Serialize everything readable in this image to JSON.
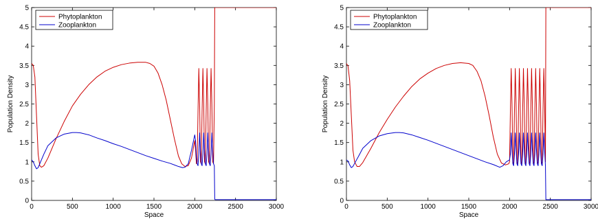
{
  "chart_data": [
    {
      "type": "line",
      "xlabel": "Space",
      "ylabel": "Population Density",
      "xlim": [
        0,
        3000
      ],
      "ylim": [
        0,
        5
      ],
      "xticks": [
        0,
        500,
        1000,
        1500,
        2000,
        2500,
        3000
      ],
      "yticks": [
        0,
        0.5,
        1,
        1.5,
        2,
        2.5,
        3,
        3.5,
        4,
        4.5,
        5
      ],
      "legend_position": "top-left",
      "series": [
        {
          "name": "Phytoplankton",
          "color": "#cc0000",
          "x": [
            0,
            20,
            40,
            60,
            80,
            100,
            120,
            150,
            200,
            300,
            400,
            500,
            600,
            700,
            800,
            900,
            1000,
            1100,
            1200,
            1300,
            1400,
            1450,
            1500,
            1550,
            1600,
            1650,
            1700,
            1750,
            1800,
            1840,
            1880,
            1920,
            1960,
            2000,
            2010,
            2020,
            2030,
            2040,
            2050,
            2060,
            2070,
            2080,
            2090,
            2100,
            2110,
            2120,
            2130,
            2140,
            2150,
            2160,
            2170,
            2180,
            2190,
            2200,
            2210,
            2220,
            2230,
            2240,
            2245,
            2250,
            3000
          ],
          "values": [
            3.55,
            3.5,
            3.2,
            2.2,
            1.2,
            0.9,
            0.86,
            0.9,
            1.1,
            1.6,
            2.05,
            2.45,
            2.75,
            3.0,
            3.2,
            3.35,
            3.45,
            3.52,
            3.56,
            3.58,
            3.58,
            3.55,
            3.48,
            3.3,
            3.0,
            2.6,
            2.1,
            1.6,
            1.15,
            0.95,
            0.88,
            0.9,
            1.1,
            1.55,
            1.3,
            0.95,
            1.0,
            2.3,
            3.42,
            2.5,
            1.0,
            0.95,
            2.3,
            3.42,
            2.5,
            1.0,
            0.95,
            2.3,
            3.42,
            2.5,
            1.0,
            0.95,
            2.3,
            3.42,
            2.5,
            1.0,
            0.95,
            2.5,
            5.0,
            5.0,
            5.0
          ]
        },
        {
          "name": "Zooplankton",
          "color": "#0000cc",
          "x": [
            0,
            20,
            40,
            60,
            80,
            100,
            150,
            200,
            300,
            400,
            500,
            550,
            600,
            700,
            800,
            900,
            1000,
            1100,
            1200,
            1300,
            1400,
            1500,
            1600,
            1700,
            1800,
            1850,
            1880,
            1920,
            1960,
            2000,
            2010,
            2020,
            2030,
            2040,
            2050,
            2060,
            2070,
            2080,
            2090,
            2100,
            2110,
            2120,
            2130,
            2140,
            2150,
            2160,
            2170,
            2180,
            2190,
            2200,
            2210,
            2220,
            2230,
            2240,
            2245,
            2250,
            3000
          ],
          "values": [
            1.05,
            1.0,
            0.9,
            0.82,
            0.85,
            0.95,
            1.2,
            1.42,
            1.62,
            1.72,
            1.76,
            1.76,
            1.75,
            1.7,
            1.62,
            1.55,
            1.47,
            1.4,
            1.32,
            1.24,
            1.16,
            1.09,
            1.02,
            0.96,
            0.88,
            0.85,
            0.86,
            0.95,
            1.3,
            1.7,
            1.55,
            1.1,
            0.95,
            0.9,
            1.2,
            1.75,
            1.3,
            0.95,
            0.9,
            1.2,
            1.75,
            1.3,
            0.95,
            0.9,
            1.2,
            1.75,
            1.3,
            0.95,
            0.9,
            1.2,
            1.75,
            1.3,
            0.95,
            0.9,
            0.03,
            0.02,
            0.02
          ]
        }
      ]
    },
    {
      "type": "line",
      "xlabel": "Space",
      "ylabel": "Population Density",
      "xlim": [
        0,
        3000
      ],
      "ylim": [
        0,
        5
      ],
      "xticks": [
        0,
        500,
        1000,
        1500,
        2000,
        2500,
        3000
      ],
      "yticks": [
        0,
        0.5,
        1,
        1.5,
        2,
        2.5,
        3,
        3.5,
        4,
        4.5,
        5
      ],
      "legend_position": "top-left",
      "series": [
        {
          "name": "Phytoplankton",
          "color": "#cc0000",
          "x": [
            0,
            20,
            40,
            60,
            80,
            100,
            130,
            160,
            200,
            300,
            400,
            500,
            600,
            700,
            800,
            900,
            1000,
            1100,
            1200,
            1300,
            1400,
            1500,
            1550,
            1600,
            1650,
            1700,
            1750,
            1800,
            1850,
            1900,
            1950,
            1990,
            2000,
            2010,
            2020,
            2030,
            2040,
            2050,
            2060,
            2070,
            2080,
            2090,
            2100,
            2110,
            2120,
            2130,
            2140,
            2150,
            2160,
            2170,
            2180,
            2190,
            2200,
            2210,
            2220,
            2230,
            2240,
            2250,
            2260,
            2270,
            2280,
            2290,
            2300,
            2310,
            2320,
            2330,
            2340,
            2350,
            2360,
            2370,
            2380,
            2390,
            2400,
            2410,
            2420,
            2430,
            2440,
            2445,
            3000
          ],
          "values": [
            3.55,
            3.48,
            3.1,
            2.2,
            1.3,
            1.0,
            0.88,
            0.88,
            0.98,
            1.35,
            1.75,
            2.1,
            2.42,
            2.7,
            2.95,
            3.15,
            3.3,
            3.42,
            3.5,
            3.55,
            3.57,
            3.55,
            3.5,
            3.35,
            3.1,
            2.7,
            2.2,
            1.65,
            1.2,
            0.97,
            0.92,
            0.95,
            1.0,
            2.3,
            3.42,
            2.5,
            1.0,
            0.95,
            2.3,
            3.42,
            2.5,
            1.0,
            0.95,
            2.3,
            3.42,
            2.5,
            1.0,
            0.95,
            2.3,
            3.42,
            2.5,
            1.0,
            0.95,
            2.3,
            3.42,
            2.5,
            1.0,
            0.95,
            2.3,
            3.42,
            2.5,
            1.0,
            0.95,
            2.3,
            3.42,
            2.5,
            1.0,
            0.95,
            2.3,
            3.42,
            2.5,
            1.0,
            0.95,
            2.3,
            3.42,
            2.5,
            1.0,
            5.0,
            5.0
          ]
        },
        {
          "name": "Zooplankton",
          "color": "#0000cc",
          "x": [
            0,
            20,
            40,
            60,
            80,
            100,
            150,
            200,
            300,
            400,
            500,
            600,
            650,
            700,
            800,
            900,
            1000,
            1100,
            1200,
            1300,
            1400,
            1500,
            1600,
            1700,
            1800,
            1880,
            1920,
            1960,
            2000,
            2010,
            2020,
            2030,
            2040,
            2050,
            2060,
            2070,
            2080,
            2090,
            2100,
            2110,
            2120,
            2130,
            2140,
            2150,
            2160,
            2170,
            2180,
            2190,
            2200,
            2210,
            2220,
            2230,
            2240,
            2250,
            2260,
            2270,
            2280,
            2290,
            2300,
            2310,
            2320,
            2330,
            2340,
            2350,
            2360,
            2370,
            2380,
            2390,
            2400,
            2410,
            2420,
            2430,
            2440,
            2445,
            3000
          ],
          "values": [
            1.05,
            1.02,
            0.92,
            0.85,
            0.88,
            0.96,
            1.15,
            1.35,
            1.55,
            1.67,
            1.73,
            1.76,
            1.76,
            1.75,
            1.7,
            1.63,
            1.56,
            1.48,
            1.4,
            1.32,
            1.24,
            1.16,
            1.08,
            1.0,
            0.93,
            0.86,
            0.9,
            1.0,
            1.05,
            1.2,
            1.75,
            1.3,
            0.95,
            0.9,
            1.2,
            1.75,
            1.3,
            0.95,
            0.9,
            1.2,
            1.75,
            1.3,
            0.95,
            0.9,
            1.2,
            1.75,
            1.3,
            0.95,
            0.9,
            1.2,
            1.75,
            1.3,
            0.95,
            0.9,
            1.2,
            1.75,
            1.3,
            0.95,
            0.9,
            1.2,
            1.75,
            1.3,
            0.95,
            0.9,
            1.2,
            1.75,
            1.3,
            0.95,
            0.9,
            1.2,
            1.75,
            1.3,
            0.9,
            0.02,
            0.02
          ]
        }
      ]
    }
  ]
}
